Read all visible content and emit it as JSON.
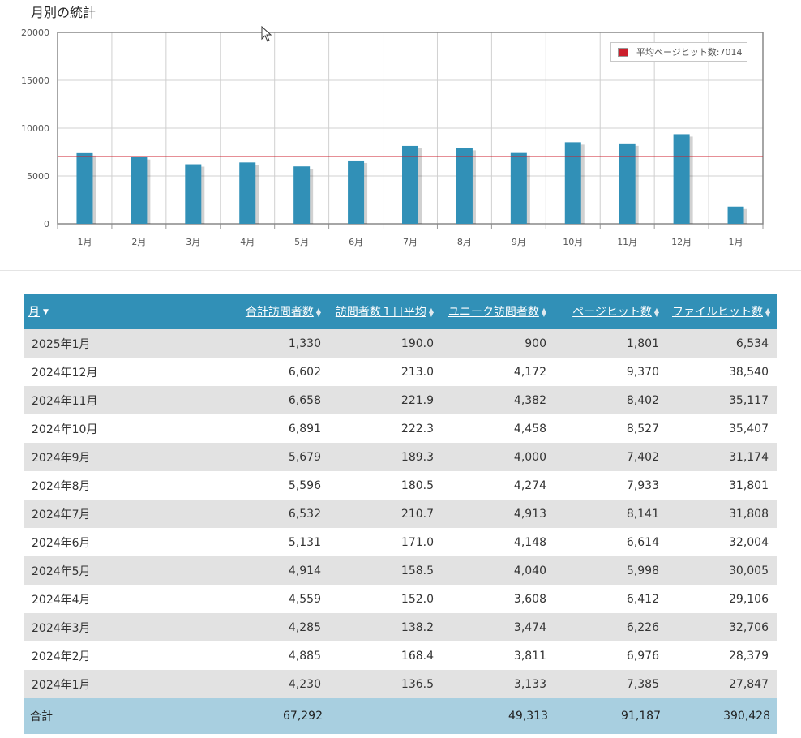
{
  "page": {
    "title": "月別の統計"
  },
  "chart_data": {
    "type": "bar",
    "categories": [
      "1月",
      "2月",
      "3月",
      "4月",
      "5月",
      "6月",
      "7月",
      "8月",
      "9月",
      "10月",
      "11月",
      "12月",
      "1月"
    ],
    "series": [
      {
        "name": "ページヒット数",
        "values": [
          7385,
          6976,
          6226,
          6412,
          5998,
          6614,
          8141,
          7933,
          7402,
          8527,
          8402,
          9370,
          1801
        ]
      }
    ],
    "average_line": {
      "label": "平均ページヒット数:7014",
      "value": 7014,
      "color": "#cc1f2c"
    },
    "ylim": [
      0,
      20000
    ],
    "yticks": [
      "20000",
      "15000",
      "10000",
      "5000",
      "0"
    ],
    "grid": true,
    "legend_position": "top-right",
    "bar_color": "#3190b7"
  },
  "table": {
    "headers": [
      "月",
      "合計訪問者数",
      "訪問者数１日平均",
      "ユニーク訪問者数",
      "ページヒット数",
      "ファイルヒット数"
    ],
    "rows": [
      [
        "2025年1月",
        "1,330",
        "190.0",
        "900",
        "1,801",
        "6,534"
      ],
      [
        "2024年12月",
        "6,602",
        "213.0",
        "4,172",
        "9,370",
        "38,540"
      ],
      [
        "2024年11月",
        "6,658",
        "221.9",
        "4,382",
        "8,402",
        "35,117"
      ],
      [
        "2024年10月",
        "6,891",
        "222.3",
        "4,458",
        "8,527",
        "35,407"
      ],
      [
        "2024年9月",
        "5,679",
        "189.3",
        "4,000",
        "7,402",
        "31,174"
      ],
      [
        "2024年8月",
        "5,596",
        "180.5",
        "4,274",
        "7,933",
        "31,801"
      ],
      [
        "2024年7月",
        "6,532",
        "210.7",
        "4,913",
        "8,141",
        "31,808"
      ],
      [
        "2024年6月",
        "5,131",
        "171.0",
        "4,148",
        "6,614",
        "32,004"
      ],
      [
        "2024年5月",
        "4,914",
        "158.5",
        "4,040",
        "5,998",
        "30,005"
      ],
      [
        "2024年4月",
        "4,559",
        "152.0",
        "3,608",
        "6,412",
        "29,106"
      ],
      [
        "2024年3月",
        "4,285",
        "138.2",
        "3,474",
        "6,226",
        "32,706"
      ],
      [
        "2024年2月",
        "4,885",
        "168.4",
        "3,811",
        "6,976",
        "28,379"
      ],
      [
        "2024年1月",
        "4,230",
        "136.5",
        "3,133",
        "7,385",
        "27,847"
      ]
    ],
    "footer": [
      "合計",
      "67,292",
      "",
      "49,313",
      "91,187",
      "390,428"
    ]
  },
  "colors": {
    "header_bg": "#3190b7",
    "footer_bg": "#a8cfe0",
    "row_alt": "#e2e2e2"
  }
}
